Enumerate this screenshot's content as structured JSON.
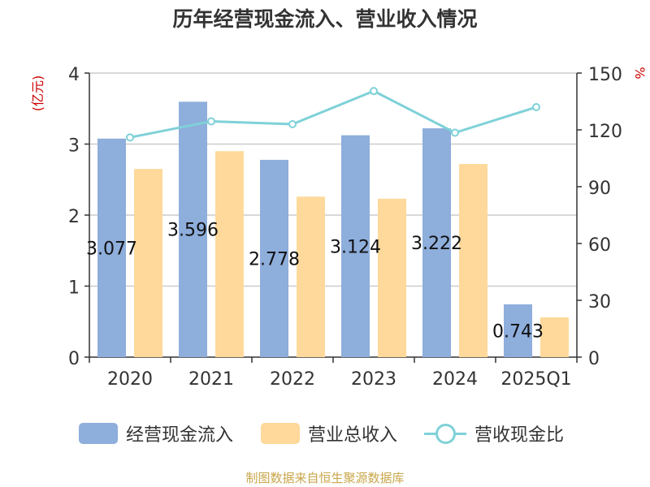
{
  "title": "历年经营现金流入、营业收入情况",
  "source_note": "制图数据来自恒生聚源数据库",
  "colors": {
    "cash_inflow": "#8eaedc",
    "revenue": "#fed99b",
    "ratio": "#7fd1d8",
    "axis_unit": "#cc0000",
    "source_note": "#c8a64a",
    "grid": "#cccccc",
    "axis": "#333333"
  },
  "chart_data": {
    "type": "bar",
    "title": "历年经营现金流入、营业收入情况",
    "categories": [
      "2020",
      "2021",
      "2022",
      "2023",
      "2024",
      "2025Q1"
    ],
    "left_axis": {
      "unit": "(亿元)",
      "ylim": [
        0,
        4
      ],
      "ticks": [
        "0",
        "1",
        "2",
        "3",
        "4"
      ]
    },
    "right_axis": {
      "unit": "%",
      "ylim": [
        0,
        150
      ],
      "ticks": [
        "0",
        "30",
        "60",
        "90",
        "120",
        "150"
      ]
    },
    "grid": true,
    "legend_position": "bottom",
    "series": [
      {
        "name": "经营现金流入",
        "kind": "bar",
        "axis": "left",
        "values": [
          3.077,
          3.596,
          2.778,
          3.124,
          3.222,
          0.743
        ],
        "labels": [
          "3.077",
          "3.596",
          "2.778",
          "3.124",
          "3.222",
          "0.743"
        ]
      },
      {
        "name": "营业总收入",
        "kind": "bar",
        "axis": "left",
        "values": [
          2.65,
          2.9,
          2.26,
          2.23,
          2.72,
          0.56
        ]
      },
      {
        "name": "营收现金比",
        "kind": "line",
        "axis": "right",
        "values": [
          116,
          124.5,
          123,
          140.5,
          118.5,
          132
        ]
      }
    ]
  }
}
